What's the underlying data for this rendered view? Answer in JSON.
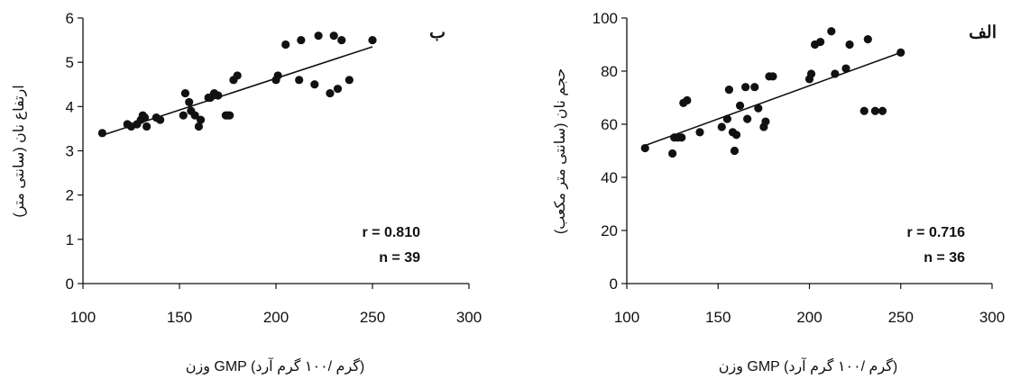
{
  "chart_data": [
    {
      "type": "scatter",
      "panel_label": "ب",
      "xlabel": "وزن GMP  (گرم /۱۰۰ گرم آرد)",
      "ylabel": "ارتفاع نان (سانتی متر)",
      "xlim": [
        100,
        300
      ],
      "ylim": [
        0,
        6
      ],
      "xticks": [
        100,
        150,
        200,
        250,
        300
      ],
      "yticks": [
        0,
        1,
        2,
        3,
        4,
        5,
        6
      ],
      "r_text": "r = 0.810",
      "n_text": "n = 39",
      "grid": false,
      "series": [
        {
          "x": [
            110,
            123,
            125,
            128,
            130,
            131,
            132,
            133,
            138,
            140,
            152,
            153,
            155,
            156,
            158,
            160,
            161,
            165,
            166,
            168,
            170,
            174,
            175,
            176,
            178,
            180,
            200,
            201,
            205,
            212,
            213,
            220,
            222,
            228,
            230,
            232,
            234,
            238,
            250
          ],
          "y": [
            3.4,
            3.6,
            3.55,
            3.6,
            3.7,
            3.8,
            3.75,
            3.55,
            3.75,
            3.7,
            3.8,
            4.3,
            4.1,
            3.9,
            3.8,
            3.55,
            3.7,
            4.2,
            4.2,
            4.3,
            4.25,
            3.8,
            3.8,
            3.8,
            4.6,
            4.7,
            4.6,
            4.7,
            5.4,
            4.6,
            5.5,
            4.5,
            5.6,
            4.3,
            5.6,
            4.4,
            5.5,
            4.6,
            5.5
          ]
        }
      ],
      "fit_line": {
        "x": [
          110,
          250
        ],
        "y": [
          3.35,
          5.35
        ]
      }
    },
    {
      "type": "scatter",
      "panel_label": "الف",
      "xlabel": "وزن GMP  (گرم /۱۰۰ گرم آرد)",
      "ylabel": "حجم نان (سانتی متر مکعب)",
      "xlim": [
        100,
        300
      ],
      "ylim": [
        0,
        100
      ],
      "xticks": [
        100,
        150,
        200,
        250,
        300
      ],
      "yticks": [
        0,
        20,
        40,
        60,
        80,
        100
      ],
      "r_text": "r = 0.716",
      "n_text": "n = 36",
      "grid": false,
      "series": [
        {
          "x": [
            110,
            125,
            126,
            128,
            130,
            131,
            133,
            140,
            152,
            155,
            156,
            158,
            159,
            160,
            162,
            165,
            166,
            170,
            172,
            175,
            176,
            178,
            180,
            200,
            201,
            203,
            206,
            212,
            214,
            220,
            222,
            230,
            232,
            236,
            240,
            250
          ],
          "y": [
            51,
            49,
            55,
            55,
            55,
            68,
            69,
            57,
            59,
            62,
            73,
            57,
            50,
            56,
            67,
            74,
            62,
            74,
            66,
            59,
            61,
            78,
            78,
            77,
            79,
            90,
            91,
            95,
            79,
            81,
            90,
            65,
            92,
            65,
            65,
            87
          ]
        }
      ],
      "fit_line": {
        "x": [
          110,
          250
        ],
        "y": [
          52,
          87
        ]
      }
    }
  ]
}
